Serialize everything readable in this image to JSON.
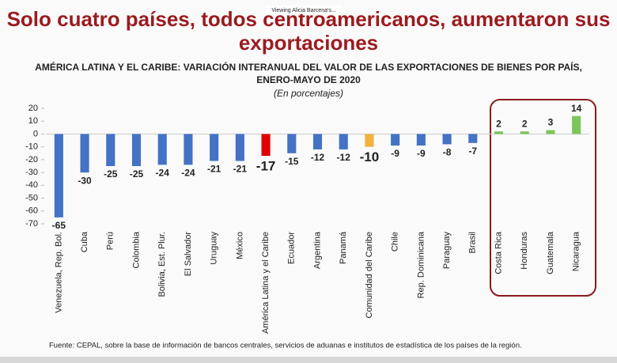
{
  "viewing_label": "Viewing Alicia Barcena's...",
  "chart_data": {
    "type": "bar",
    "title_lines": [
      "Solo cuatro países, todos centroamericanos, aumentaron sus",
      "exportaciones"
    ],
    "subtitle_lines": [
      "AMÉRICA LATINA Y EL CARIBE: VARIACIÓN INTERANUAL DEL VALOR DE LAS EXPORTACIONES DE BIENES POR PAÍS,",
      "ENERO-MAYO DE 2020"
    ],
    "unit_note": "(En porcentajes)",
    "categories": [
      "Venezuela, Rep. Bol.",
      "Cuba",
      "Perú",
      "Colombia",
      "Bolivia, Est. Plur.",
      "El Salvador",
      "Uruguay",
      "México",
      "América Latina y el Caribe",
      "Ecuador",
      "Argentina",
      "Panamá",
      "Comunidad del Caribe",
      "Chile",
      "Rep. Dominicana",
      "Paraguay",
      "Brasil",
      "Costa Rica",
      "Honduras",
      "Guatemala",
      "Nicaragua"
    ],
    "values": [
      -65,
      -30,
      -25,
      -25,
      -24,
      -24,
      -21,
      -21,
      -17,
      -15,
      -12,
      -12,
      -10,
      -9,
      -9,
      -8,
      -7,
      2,
      2,
      3,
      14
    ],
    "colors": [
      "#4472c4",
      "#4472c4",
      "#4472c4",
      "#4472c4",
      "#4472c4",
      "#4472c4",
      "#4472c4",
      "#4472c4",
      "#e00000",
      "#4472c4",
      "#4472c4",
      "#4472c4",
      "#f4b13d",
      "#4472c4",
      "#4472c4",
      "#4472c4",
      "#4472c4",
      "#7cc55a",
      "#7cc55a",
      "#7cc55a",
      "#7cc55a"
    ],
    "ylim": [
      -70,
      20
    ],
    "yticks": [
      20,
      10,
      0,
      -10,
      -20,
      -30,
      -40,
      -50,
      -60,
      -70
    ],
    "grid": false,
    "source": "Fuente: CEPAL, sobre la base de información de bancos centrales, servicios de aduanas e institutos de estadística de los países de la región."
  }
}
